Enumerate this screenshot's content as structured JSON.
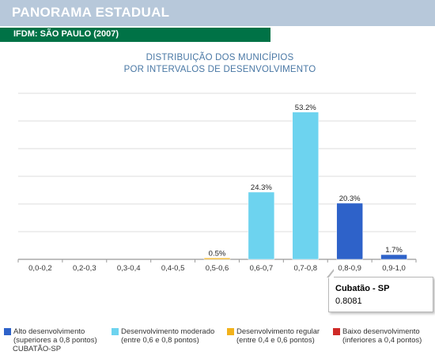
{
  "header": {
    "title": "PANORAMA ESTADUAL"
  },
  "subheader": {
    "label": "IFDM: SÃO PAULO (2007)"
  },
  "chart_data": {
    "type": "bar",
    "title_lines": [
      "DISTRIBUIÇÃO DOS MUNICÍPIOS",
      "POR INTERVALOS DE DESENVOLVIMENTO"
    ],
    "categories": [
      "0,0-0,2",
      "0,2-0,3",
      "0,3-0,4",
      "0,4-0,5",
      "0,5-0,6",
      "0,6-0,7",
      "0,7-0,8",
      "0,8-0,9",
      "0,9-1,0"
    ],
    "values": [
      0,
      0,
      0,
      0,
      0.5,
      24.3,
      53.2,
      20.3,
      1.7
    ],
    "data_labels": [
      "",
      "",
      "",
      "",
      "0.5%",
      "24.3%",
      "53.2%",
      "20.3%",
      "1.7%"
    ],
    "bar_colors": [
      "#cf2a27",
      "#cf2a27",
      "#cf2a27",
      "#cf2a27",
      "#f2b21b",
      "#6dd3ef",
      "#6dd3ef",
      "#2e62c9",
      "#2e62c9"
    ],
    "ylim": [
      0,
      60
    ],
    "grid": true,
    "legend": [
      {
        "label_lines": [
          "Alto desenvolvimento",
          "(superiores a 0,8 pontos)"
        ],
        "color": "#2e62c9"
      },
      {
        "label_lines": [
          "Desenvolvimento moderado",
          "(entre 0,6 e 0,8 pontos)"
        ],
        "color": "#6dd3ef"
      },
      {
        "label_lines": [
          "Desenvolvimento regular",
          "(entre 0,4 e 0,6 pontos)"
        ],
        "color": "#f2b21b"
      },
      {
        "label_lines": [
          "Baixo desenvolvimento",
          "(inferiores a 0,4 pontos)"
        ],
        "color": "#cf2a27"
      }
    ],
    "highlight": {
      "name": "Cubatão - SP",
      "value": "0.8081",
      "category": "0,8-0,9"
    }
  },
  "footer": {
    "note": "CUBATÃO-SP"
  }
}
